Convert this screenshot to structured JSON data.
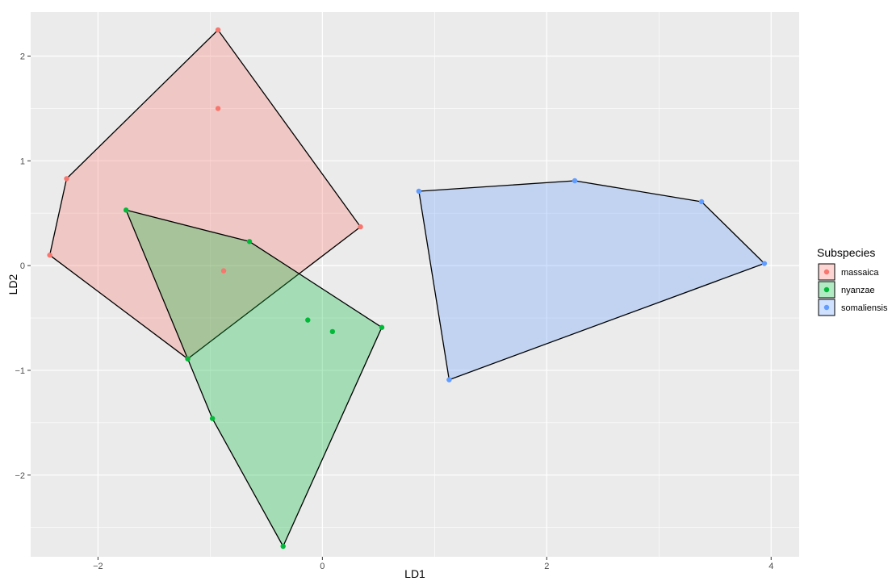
{
  "chart_data": {
    "type": "scatter",
    "title": "",
    "xlabel": "LD1",
    "ylabel": "LD2",
    "xlim": [
      -2.6,
      4.25
    ],
    "ylim": [
      -2.78,
      2.42
    ],
    "x_ticks": [
      -2,
      0,
      2,
      4
    ],
    "y_ticks": [
      -2,
      -1,
      0,
      1,
      2
    ],
    "x_tick_labels": [
      "−2",
      "0",
      "2",
      "4"
    ],
    "y_tick_labels": [
      "−2",
      "−1",
      "0",
      "1",
      "2"
    ],
    "grid": true,
    "legend": {
      "title": "Subspecies",
      "position": "right"
    },
    "series": [
      {
        "name": "massaica",
        "color": "#F8766D",
        "points": [
          [
            -0.93,
            2.25
          ],
          [
            -0.93,
            1.5
          ],
          [
            -2.28,
            0.83
          ],
          [
            -2.43,
            0.1
          ],
          [
            0.34,
            0.37
          ],
          [
            -0.88,
            -0.05
          ],
          [
            -1.2,
            -0.89
          ]
        ],
        "hull": [
          [
            -0.93,
            2.25
          ],
          [
            0.34,
            0.37
          ],
          [
            -1.2,
            -0.89
          ],
          [
            -2.43,
            0.1
          ],
          [
            -2.28,
            0.83
          ]
        ]
      },
      {
        "name": "nyanzae",
        "color": "#00BA38",
        "points": [
          [
            -1.75,
            0.53
          ],
          [
            -0.65,
            0.23
          ],
          [
            -0.13,
            -0.52
          ],
          [
            0.09,
            -0.63
          ],
          [
            0.53,
            -0.59
          ],
          [
            -1.2,
            -0.89
          ],
          [
            -0.98,
            -1.46
          ],
          [
            -0.35,
            -2.68
          ]
        ],
        "hull": [
          [
            -1.75,
            0.53
          ],
          [
            -0.65,
            0.23
          ],
          [
            0.53,
            -0.59
          ],
          [
            -0.35,
            -2.68
          ],
          [
            -0.98,
            -1.46
          ],
          [
            -1.2,
            -0.89
          ]
        ]
      },
      {
        "name": "somaliensis",
        "color": "#619CFF",
        "points": [
          [
            0.86,
            0.71
          ],
          [
            2.25,
            0.81
          ],
          [
            3.38,
            0.61
          ],
          [
            3.94,
            0.02
          ],
          [
            1.13,
            -1.09
          ]
        ],
        "hull": [
          [
            0.86,
            0.71
          ],
          [
            2.25,
            0.81
          ],
          [
            3.38,
            0.61
          ],
          [
            3.94,
            0.02
          ],
          [
            1.13,
            -1.09
          ]
        ]
      }
    ]
  }
}
